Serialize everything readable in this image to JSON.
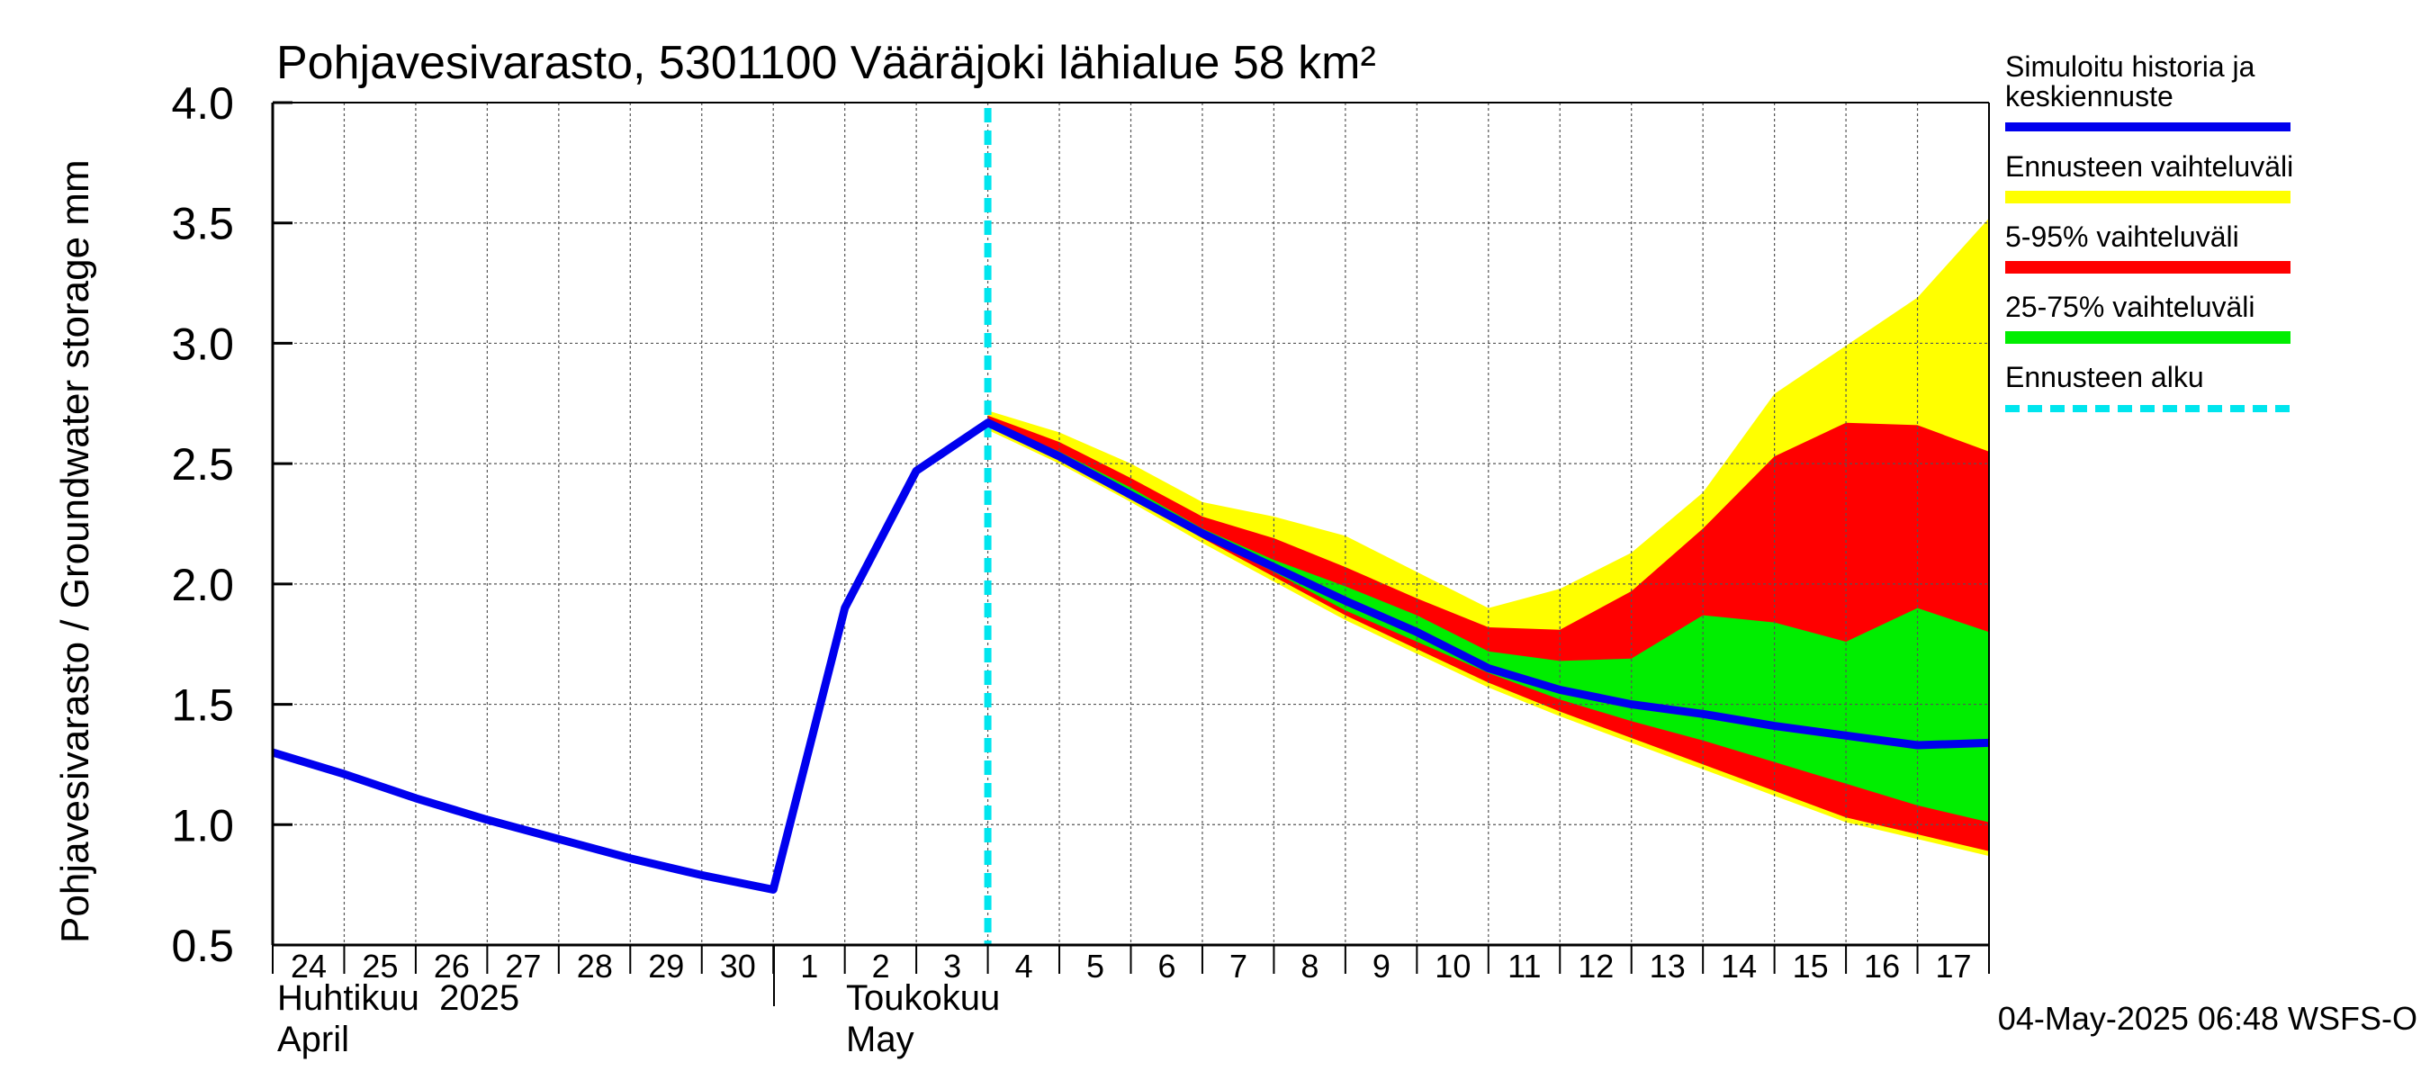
{
  "chart_data": {
    "type": "area",
    "title": "Pohjavesivarasto, 5301100 Vääräjoki lähialue 58 km²",
    "ylabel": "Pohjavesivarasto / Groundwater storage   mm",
    "ylim": [
      0.5,
      4.0
    ],
    "yticks": [
      "0.5",
      "1.0",
      "1.5",
      "2.0",
      "2.5",
      "3.0",
      "3.5",
      "4.0"
    ],
    "ytick_values": [
      0.5,
      1.0,
      1.5,
      2.0,
      2.5,
      3.0,
      3.5,
      4.0
    ],
    "xlim": [
      0,
      24
    ],
    "day_labels": [
      "24",
      "25",
      "26",
      "27",
      "28",
      "29",
      "30",
      "1",
      "2",
      "3",
      "4",
      "5",
      "6",
      "7",
      "8",
      "9",
      "10",
      "11",
      "12",
      "13",
      "14",
      "15",
      "16",
      "17"
    ],
    "month_labels": [
      {
        "fi": "Huhtikuu  2025",
        "en": "April"
      },
      {
        "fi": "Toukokuu",
        "en": "May"
      }
    ],
    "forecast_start": 10,
    "timestamp": "04-May-2025 06:48 WSFS-O",
    "legend": [
      {
        "label": "Simuloitu historia ja keskiennuste",
        "line1": "Simuloitu historia ja",
        "line2": "keskiennuste",
        "color": "#0000ee",
        "style": "solid"
      },
      {
        "label": "Ennusteen vaihteluväli",
        "color": "#ffff00",
        "style": "solid"
      },
      {
        "label": "5-95% vaihteluväli",
        "color": "#ff0000",
        "style": "solid"
      },
      {
        "label": "25-75% vaihteluväli",
        "color": "#00ee00",
        "style": "solid"
      },
      {
        "label": "Ennusteen alku",
        "color": "#00e5ee",
        "style": "dashed"
      }
    ],
    "series": [
      {
        "name": "Simuloitu historia ja keskiennuste",
        "x": [
          0,
          1,
          2,
          3,
          4,
          5,
          6,
          7,
          8,
          9,
          10,
          11,
          12,
          13,
          14,
          15,
          16,
          17,
          18,
          19,
          20,
          21,
          22,
          23,
          24
        ],
        "values": [
          1.3,
          1.21,
          1.11,
          1.02,
          0.94,
          0.86,
          0.79,
          0.73,
          1.9,
          2.47,
          2.67,
          2.53,
          2.37,
          2.21,
          2.07,
          1.93,
          1.8,
          1.65,
          1.56,
          1.5,
          1.46,
          1.41,
          1.37,
          1.33,
          1.34
        ]
      },
      {
        "name": "Ennusteen vaihteluväli",
        "x": [
          10,
          11,
          12,
          13,
          14,
          15,
          16,
          17,
          18,
          19,
          20,
          21,
          22,
          23,
          24
        ],
        "low": [
          2.64,
          2.5,
          2.34,
          2.17,
          2.01,
          1.85,
          1.71,
          1.57,
          1.45,
          1.34,
          1.23,
          1.12,
          1.01,
          0.94,
          0.87
        ],
        "high": [
          2.72,
          2.63,
          2.5,
          2.34,
          2.28,
          2.2,
          2.05,
          1.9,
          1.98,
          2.13,
          2.38,
          2.79,
          2.99,
          3.19,
          3.52
        ]
      },
      {
        "name": "5-95% vaihteluväli",
        "x": [
          10,
          11,
          12,
          13,
          14,
          15,
          16,
          17,
          18,
          19,
          20,
          21,
          22,
          23,
          24
        ],
        "low": [
          2.66,
          2.52,
          2.36,
          2.19,
          2.03,
          1.87,
          1.73,
          1.59,
          1.47,
          1.36,
          1.25,
          1.14,
          1.03,
          0.96,
          0.89
        ],
        "high": [
          2.7,
          2.59,
          2.44,
          2.28,
          2.19,
          2.07,
          1.94,
          1.82,
          1.81,
          1.97,
          2.23,
          2.53,
          2.67,
          2.66,
          2.55
        ]
      },
      {
        "name": "25-75% vaihteluväli",
        "x": [
          10,
          11,
          12,
          13,
          14,
          15,
          16,
          17,
          18,
          19,
          20,
          21,
          22,
          23,
          24
        ],
        "low": [
          2.67,
          2.53,
          2.37,
          2.2,
          2.05,
          1.89,
          1.76,
          1.63,
          1.52,
          1.43,
          1.35,
          1.26,
          1.17,
          1.08,
          1.01
        ],
        "high": [
          2.68,
          2.55,
          2.4,
          2.23,
          2.1,
          1.99,
          1.87,
          1.72,
          1.68,
          1.69,
          1.87,
          1.84,
          1.76,
          1.9,
          1.8
        ]
      }
    ]
  }
}
